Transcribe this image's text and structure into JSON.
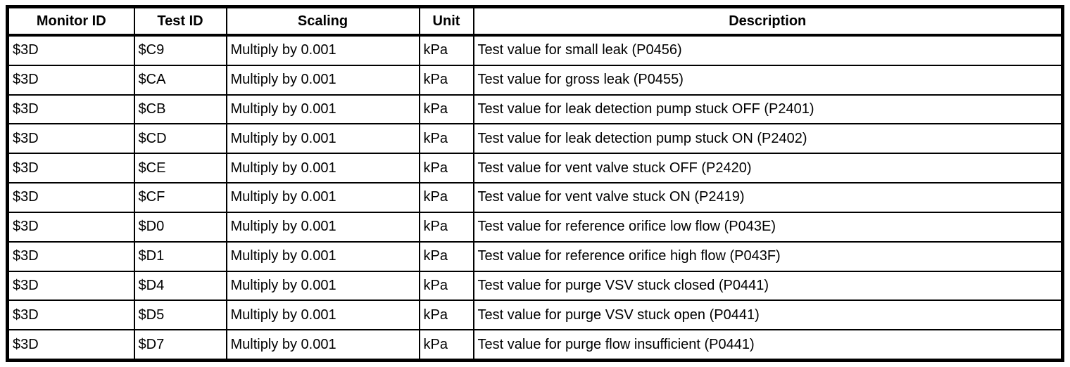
{
  "table": {
    "columns": [
      "Monitor ID",
      "Test ID",
      "Scaling",
      "Unit",
      "Description"
    ],
    "rows": [
      [
        "$3D",
        "$C9",
        "Multiply by 0.001",
        "kPa",
        "Test value for small leak (P0456)"
      ],
      [
        "$3D",
        "$CA",
        "Multiply by 0.001",
        "kPa",
        "Test value for gross leak (P0455)"
      ],
      [
        "$3D",
        "$CB",
        "Multiply by 0.001",
        "kPa",
        "Test value for leak detection pump stuck OFF (P2401)"
      ],
      [
        "$3D",
        "$CD",
        "Multiply by 0.001",
        "kPa",
        "Test value for leak detection pump stuck ON (P2402)"
      ],
      [
        "$3D",
        "$CE",
        "Multiply by 0.001",
        "kPa",
        "Test value for vent valve stuck OFF (P2420)"
      ],
      [
        "$3D",
        "$CF",
        "Multiply by 0.001",
        "kPa",
        "Test value for vent valve stuck ON (P2419)"
      ],
      [
        "$3D",
        "$D0",
        "Multiply by 0.001",
        "kPa",
        "Test value for reference orifice low flow (P043E)"
      ],
      [
        "$3D",
        "$D1",
        "Multiply by 0.001",
        "kPa",
        "Test value for reference orifice high flow (P043F)"
      ],
      [
        "$3D",
        "$D4",
        "Multiply by 0.001",
        "kPa",
        "Test value for purge VSV stuck closed (P0441)"
      ],
      [
        "$3D",
        "$D5",
        "Multiply by 0.001",
        "kPa",
        "Test value for purge VSV stuck open (P0441)"
      ],
      [
        "$3D",
        "$D7",
        "Multiply by 0.001",
        "kPa",
        "Test value for purge flow insufficient (P0441)"
      ]
    ]
  },
  "colors": {
    "border": "#000000",
    "background": "#ffffff",
    "text": "#000000"
  }
}
